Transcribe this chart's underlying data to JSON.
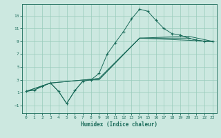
{
  "xlabel": "Humidex (Indice chaleur)",
  "bg_color": "#cce8e0",
  "grid_color": "#99ccbb",
  "line_color": "#1a6b5a",
  "xlim": [
    -0.5,
    23.5
  ],
  "ylim": [
    -2.2,
    14.8
  ],
  "xticks": [
    0,
    1,
    2,
    3,
    4,
    5,
    6,
    7,
    8,
    9,
    10,
    11,
    12,
    13,
    14,
    15,
    16,
    17,
    18,
    19,
    20,
    21,
    22,
    23
  ],
  "yticks": [
    -1,
    1,
    3,
    5,
    7,
    9,
    11,
    13
  ],
  "line1_x": [
    0,
    1,
    2,
    3,
    4,
    5,
    6,
    7,
    8,
    9,
    10,
    11,
    12,
    13,
    14,
    15,
    16,
    17,
    18,
    19,
    20,
    21,
    22,
    23
  ],
  "line1_y": [
    1.2,
    1.4,
    2.0,
    2.5,
    1.2,
    -0.7,
    1.3,
    2.8,
    3.0,
    4.0,
    7.0,
    8.8,
    10.5,
    12.5,
    14.0,
    13.7,
    12.3,
    11.0,
    10.2,
    10.0,
    9.5,
    9.2,
    9.0,
    9.0
  ],
  "line2_x": [
    0,
    1,
    2,
    3,
    4,
    5,
    6,
    7,
    8,
    9,
    14,
    19,
    20,
    21,
    22,
    23
  ],
  "line2_y": [
    1.2,
    1.4,
    2.0,
    2.5,
    1.2,
    -0.7,
    1.3,
    2.8,
    3.0,
    3.0,
    9.5,
    9.5,
    9.5,
    9.2,
    9.0,
    9.0
  ],
  "line3_x": [
    0,
    3,
    9,
    14,
    20,
    23
  ],
  "line3_y": [
    1.2,
    2.5,
    3.2,
    9.5,
    9.8,
    9.0
  ],
  "line4_x": [
    0,
    3,
    9,
    14,
    23
  ],
  "line4_y": [
    1.2,
    2.5,
    3.2,
    9.5,
    9.0
  ]
}
